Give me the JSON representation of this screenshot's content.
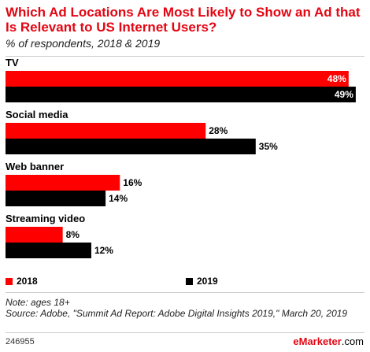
{
  "header": {
    "title": "Which Ad Locations Are Most Likely to Show an Ad that Is Relevant to US Internet Users?",
    "subtitle": "% of respondents, 2018 & 2019"
  },
  "colors": {
    "series_2018": "#ff0000",
    "series_2019": "#000000",
    "title": "#e30613"
  },
  "chart_data": {
    "type": "bar",
    "orientation": "horizontal",
    "categories": [
      "TV",
      "Social media",
      "Web banner",
      "Streaming video"
    ],
    "series": [
      {
        "name": "2018",
        "values": [
          48,
          28,
          16,
          8
        ],
        "labels": [
          "48%",
          "28%",
          "16%",
          "8%"
        ]
      },
      {
        "name": "2019",
        "values": [
          49,
          35,
          14,
          12
        ],
        "labels": [
          "49%",
          "35%",
          "14%",
          "12%"
        ]
      }
    ],
    "unit": "%",
    "legend_position": "bottom",
    "grid": false
  },
  "legend": {
    "item_2018": "2018",
    "item_2019": "2019"
  },
  "notes": {
    "note": "Note: ages 18+",
    "source": "Source: Adobe, \"Summit Ad Report: Adobe Digital Insights 2019,\" March 20, 2019"
  },
  "footer": {
    "chart_id": "246955",
    "brand_e": "e",
    "brand_rest": "Marketer",
    "brand_domain": ".com"
  }
}
